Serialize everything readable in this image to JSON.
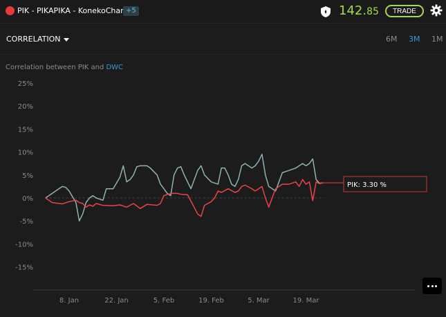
{
  "header": {
    "title": "PIK - PIKAPIKA - KonekoChanFX",
    "badge": "+5",
    "price_int": "142.",
    "price_dec": "85",
    "trade_label": "TRADE"
  },
  "toolbar": {
    "dropdown_label": "CORRELATION",
    "ranges": [
      "6M",
      "3M",
      "1M"
    ],
    "active_range": "3M"
  },
  "subtitle": {
    "prefix": "Correlation between PIK and ",
    "link": "DWC"
  },
  "colors": {
    "pik": "#e84545",
    "dwc": "#8fb3b2",
    "accent": "#a9d94a",
    "link": "#3a9ad9"
  },
  "chart_data": {
    "type": "line",
    "title": "",
    "xlabel": "",
    "ylabel": "",
    "ylim": [
      -20,
      25
    ],
    "y_ticks": [
      "25%",
      "20%",
      "15%",
      "10%",
      "5%",
      "0%",
      "-5%",
      "-10%",
      "-15%"
    ],
    "y_tick_values": [
      25,
      20,
      15,
      10,
      5,
      0,
      -5,
      -10,
      -15
    ],
    "x_ticks": [
      "8. Jan",
      "22. Jan",
      "5. Feb",
      "19. Feb",
      "5. Mar",
      "19. Mar"
    ],
    "x_tick_days": [
      8,
      22,
      36,
      50,
      64,
      78
    ],
    "x_unit": "day of year",
    "grid": false,
    "series": [
      {
        "name": "DWC",
        "x": [
          1,
          4,
          6,
          7,
          8,
          10,
          11,
          12,
          13,
          14,
          15,
          16,
          18,
          19,
          21,
          23,
          24,
          25,
          26,
          27,
          28,
          29,
          30,
          31,
          32,
          34,
          35,
          36,
          37,
          38,
          39,
          40,
          41,
          42,
          44,
          46,
          47,
          48,
          50,
          52,
          53,
          54,
          55,
          56,
          57,
          58,
          59,
          60,
          62,
          63,
          64,
          65,
          66,
          67,
          69,
          71,
          73,
          75,
          77,
          78,
          79,
          80,
          81,
          82,
          83
        ],
        "values": [
          0,
          1.5,
          2.5,
          2.3,
          1.5,
          -1,
          -5,
          -3.5,
          -1,
          0,
          0.5,
          0,
          -0.5,
          2,
          2,
          4.5,
          7,
          3.5,
          4,
          5,
          6.8,
          7,
          7,
          7,
          6.5,
          5,
          3,
          2,
          1,
          0.5,
          5,
          6.5,
          6.8,
          5,
          2,
          6,
          7,
          5,
          3.5,
          3,
          6.5,
          6.5,
          5,
          3,
          2.5,
          4,
          7,
          7.5,
          6.5,
          7,
          8,
          9.5,
          5,
          2.5,
          1.5,
          5.5,
          6,
          6.5,
          7.5,
          7,
          7.5,
          8.5,
          4,
          3.2,
          3.3
        ]
      },
      {
        "name": "PIK",
        "x": [
          1,
          3,
          6,
          8,
          10,
          11,
          12,
          13,
          14,
          15,
          16,
          18,
          21,
          23,
          25,
          27,
          29,
          31,
          34,
          35,
          36,
          38,
          40,
          41,
          43,
          46,
          47,
          48,
          50,
          51,
          52,
          53,
          55,
          57,
          58,
          59,
          60,
          62,
          63,
          64,
          65,
          66,
          67,
          69,
          71,
          73,
          75,
          76,
          77,
          78,
          79,
          80,
          81,
          82,
          83
        ],
        "values": [
          0,
          -1,
          -1.3,
          -0.8,
          -0.5,
          -1,
          -1.2,
          -2,
          -1.5,
          -1.8,
          -1.2,
          -1.6,
          -1.7,
          -1.5,
          -2,
          -1.2,
          -2.3,
          -1.4,
          -1.6,
          -1.2,
          0.5,
          1,
          1,
          0.8,
          0.7,
          -3.5,
          -4,
          -1.6,
          -0.8,
          0,
          1.5,
          1.2,
          2,
          1.2,
          1.5,
          2.5,
          2.8,
          2,
          1.5,
          2,
          2.5,
          0,
          -2,
          2,
          3,
          3,
          3.5,
          2.5,
          4,
          3,
          3.5,
          -0.6,
          3.5,
          3.1,
          3.3
        ]
      }
    ],
    "tooltip": "PIK: 3.30 %"
  }
}
